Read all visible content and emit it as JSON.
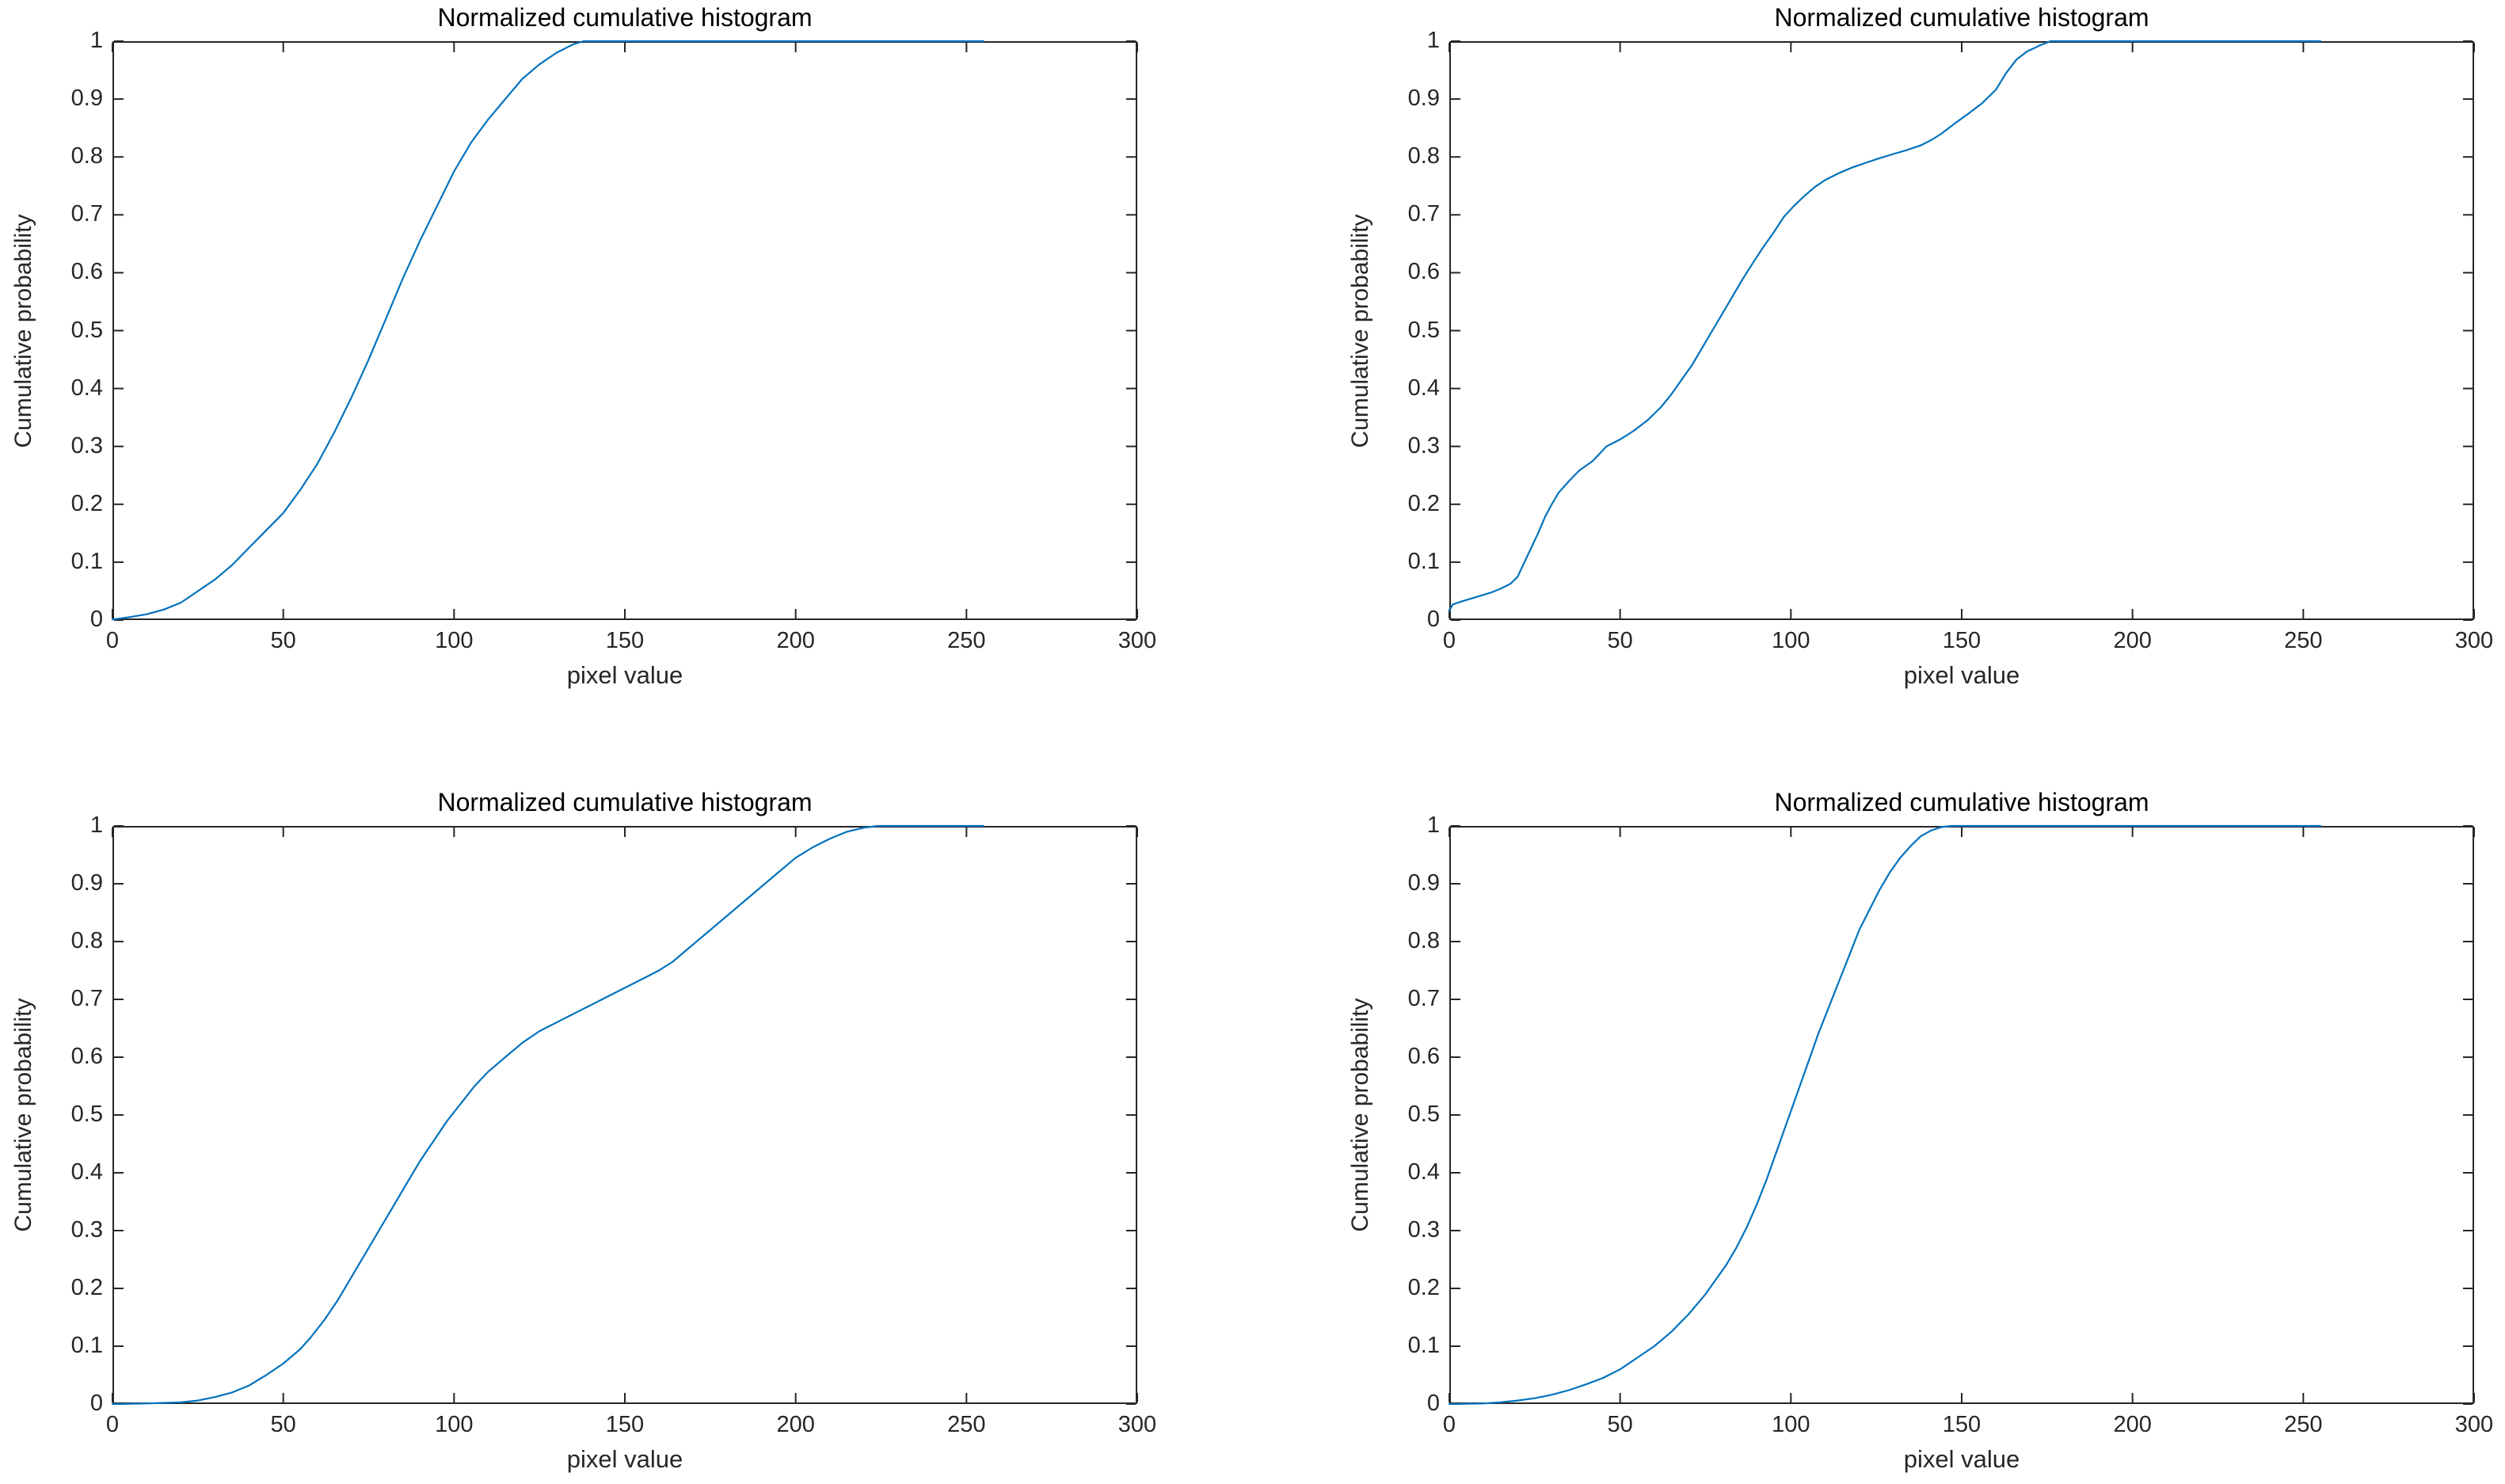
{
  "figure": {
    "background_color": "#ffffff",
    "axis_color": "#262626",
    "title_color": "#000000",
    "line_color": "#0072BD"
  },
  "chart_data": [
    {
      "type": "line",
      "position": "top-left",
      "title": "Normalized cumulative histogram",
      "xlabel": "pixel value",
      "ylabel": "Cumulative probability",
      "xlim": [
        0,
        300
      ],
      "ylim": [
        0,
        1
      ],
      "xticks": [
        0,
        50,
        100,
        150,
        200,
        250,
        300
      ],
      "xtick_labels": [
        "0",
        "50",
        "100",
        "150",
        "200",
        "250",
        "300"
      ],
      "yticks": [
        0,
        0.1,
        0.2,
        0.3,
        0.4,
        0.5,
        0.6,
        0.7,
        0.8,
        0.9,
        1
      ],
      "ytick_labels": [
        "0",
        "0.1",
        "0.2",
        "0.3",
        "0.4",
        "0.5",
        "0.6",
        "0.7",
        "0.8",
        "0.9",
        "1"
      ],
      "grid": false,
      "legend": null,
      "points": [
        [
          0,
          0.001
        ],
        [
          5,
          0.005
        ],
        [
          10,
          0.01
        ],
        [
          15,
          0.018
        ],
        [
          20,
          0.03
        ],
        [
          25,
          0.05
        ],
        [
          30,
          0.07
        ],
        [
          35,
          0.095
        ],
        [
          40,
          0.125
        ],
        [
          45,
          0.155
        ],
        [
          50,
          0.185
        ],
        [
          55,
          0.225
        ],
        [
          60,
          0.27
        ],
        [
          65,
          0.325
        ],
        [
          70,
          0.385
        ],
        [
          75,
          0.45
        ],
        [
          80,
          0.52
        ],
        [
          85,
          0.59
        ],
        [
          90,
          0.655
        ],
        [
          95,
          0.715
        ],
        [
          100,
          0.775
        ],
        [
          105,
          0.825
        ],
        [
          110,
          0.865
        ],
        [
          115,
          0.9
        ],
        [
          120,
          0.935
        ],
        [
          125,
          0.96
        ],
        [
          130,
          0.98
        ],
        [
          135,
          0.995
        ],
        [
          138,
          1
        ],
        [
          255,
          1
        ]
      ]
    },
    {
      "type": "line",
      "position": "top-right",
      "title": "Normalized cumulative histogram",
      "xlabel": "pixel value",
      "ylabel": "Cumulative probability",
      "xlim": [
        0,
        300
      ],
      "ylim": [
        0,
        1
      ],
      "xticks": [
        0,
        50,
        100,
        150,
        200,
        250,
        300
      ],
      "xtick_labels": [
        "0",
        "50",
        "100",
        "150",
        "200",
        "250",
        "300"
      ],
      "yticks": [
        0,
        0.1,
        0.2,
        0.3,
        0.4,
        0.5,
        0.6,
        0.7,
        0.8,
        0.9,
        1
      ],
      "ytick_labels": [
        "0",
        "0.1",
        "0.2",
        "0.3",
        "0.4",
        "0.5",
        "0.6",
        "0.7",
        "0.8",
        "0.9",
        "1"
      ],
      "grid": false,
      "legend": null,
      "points": [
        [
          0,
          0.016
        ],
        [
          1,
          0.027
        ],
        [
          4,
          0.033
        ],
        [
          8,
          0.04
        ],
        [
          12,
          0.047
        ],
        [
          15,
          0.054
        ],
        [
          18,
          0.063
        ],
        [
          20,
          0.075
        ],
        [
          22,
          0.1
        ],
        [
          24,
          0.125
        ],
        [
          26,
          0.15
        ],
        [
          28,
          0.178
        ],
        [
          30,
          0.2
        ],
        [
          32,
          0.22
        ],
        [
          35,
          0.24
        ],
        [
          38,
          0.258
        ],
        [
          42,
          0.275
        ],
        [
          46,
          0.3
        ],
        [
          50,
          0.312
        ],
        [
          54,
          0.327
        ],
        [
          58,
          0.345
        ],
        [
          62,
          0.368
        ],
        [
          65,
          0.39
        ],
        [
          68,
          0.415
        ],
        [
          71,
          0.44
        ],
        [
          74,
          0.47
        ],
        [
          77,
          0.5
        ],
        [
          80,
          0.53
        ],
        [
          83,
          0.56
        ],
        [
          86,
          0.59
        ],
        [
          89,
          0.618
        ],
        [
          92,
          0.645
        ],
        [
          95,
          0.67
        ],
        [
          98,
          0.697
        ],
        [
          101,
          0.716
        ],
        [
          104,
          0.733
        ],
        [
          107,
          0.748
        ],
        [
          110,
          0.76
        ],
        [
          114,
          0.772
        ],
        [
          118,
          0.782
        ],
        [
          122,
          0.79
        ],
        [
          126,
          0.798
        ],
        [
          130,
          0.805
        ],
        [
          134,
          0.812
        ],
        [
          138,
          0.82
        ],
        [
          141,
          0.829
        ],
        [
          144,
          0.84
        ],
        [
          148,
          0.858
        ],
        [
          152,
          0.875
        ],
        [
          156,
          0.893
        ],
        [
          160,
          0.916
        ],
        [
          163,
          0.945
        ],
        [
          166,
          0.968
        ],
        [
          169,
          0.982
        ],
        [
          173,
          0.993
        ],
        [
          176,
          1
        ],
        [
          255,
          1
        ]
      ]
    },
    {
      "type": "line",
      "position": "bottom-left",
      "title": "Normalized cumulative histogram",
      "xlabel": "pixel value",
      "ylabel": "Cumulative probability",
      "xlim": [
        0,
        300
      ],
      "ylim": [
        0,
        1
      ],
      "xticks": [
        0,
        50,
        100,
        150,
        200,
        250,
        300
      ],
      "xtick_labels": [
        "0",
        "50",
        "100",
        "150",
        "200",
        "250",
        "300"
      ],
      "yticks": [
        0,
        0.1,
        0.2,
        0.3,
        0.4,
        0.5,
        0.6,
        0.7,
        0.8,
        0.9,
        1
      ],
      "ytick_labels": [
        "0",
        "0.1",
        "0.2",
        "0.3",
        "0.4",
        "0.5",
        "0.6",
        "0.7",
        "0.8",
        "0.9",
        "1"
      ],
      "grid": false,
      "legend": null,
      "points": [
        [
          0,
          0
        ],
        [
          10,
          0.001
        ],
        [
          20,
          0.003
        ],
        [
          25,
          0.006
        ],
        [
          30,
          0.012
        ],
        [
          35,
          0.02
        ],
        [
          40,
          0.032
        ],
        [
          45,
          0.05
        ],
        [
          50,
          0.07
        ],
        [
          55,
          0.095
        ],
        [
          58,
          0.115
        ],
        [
          62,
          0.145
        ],
        [
          66,
          0.18
        ],
        [
          70,
          0.22
        ],
        [
          74,
          0.26
        ],
        [
          78,
          0.3
        ],
        [
          82,
          0.34
        ],
        [
          86,
          0.38
        ],
        [
          90,
          0.42
        ],
        [
          94,
          0.455
        ],
        [
          98,
          0.49
        ],
        [
          102,
          0.52
        ],
        [
          106,
          0.55
        ],
        [
          110,
          0.575
        ],
        [
          115,
          0.6
        ],
        [
          120,
          0.625
        ],
        [
          125,
          0.645
        ],
        [
          130,
          0.66
        ],
        [
          135,
          0.675
        ],
        [
          140,
          0.69
        ],
        [
          145,
          0.705
        ],
        [
          150,
          0.72
        ],
        [
          155,
          0.735
        ],
        [
          160,
          0.75
        ],
        [
          164,
          0.765
        ],
        [
          168,
          0.785
        ],
        [
          172,
          0.805
        ],
        [
          176,
          0.825
        ],
        [
          180,
          0.845
        ],
        [
          185,
          0.87
        ],
        [
          190,
          0.895
        ],
        [
          195,
          0.92
        ],
        [
          200,
          0.945
        ],
        [
          205,
          0.963
        ],
        [
          210,
          0.978
        ],
        [
          215,
          0.99
        ],
        [
          220,
          0.997
        ],
        [
          224,
          1
        ],
        [
          255,
          1
        ]
      ]
    },
    {
      "type": "line",
      "position": "bottom-right",
      "title": "Normalized cumulative histogram",
      "xlabel": "pixel value",
      "ylabel": "Cumulative probability",
      "xlim": [
        0,
        300
      ],
      "ylim": [
        0,
        1
      ],
      "xticks": [
        0,
        50,
        100,
        150,
        200,
        250,
        300
      ],
      "xtick_labels": [
        "0",
        "50",
        "100",
        "150",
        "200",
        "250",
        "300"
      ],
      "yticks": [
        0,
        0.1,
        0.2,
        0.3,
        0.4,
        0.5,
        0.6,
        0.7,
        0.8,
        0.9,
        1
      ],
      "ytick_labels": [
        "0",
        "0.1",
        "0.2",
        "0.3",
        "0.4",
        "0.5",
        "0.6",
        "0.7",
        "0.8",
        "0.9",
        "1"
      ],
      "grid": false,
      "legend": null,
      "points": [
        [
          0,
          0
        ],
        [
          10,
          0.001
        ],
        [
          15,
          0.003
        ],
        [
          20,
          0.006
        ],
        [
          25,
          0.01
        ],
        [
          30,
          0.016
        ],
        [
          35,
          0.024
        ],
        [
          40,
          0.034
        ],
        [
          45,
          0.045
        ],
        [
          50,
          0.06
        ],
        [
          55,
          0.08
        ],
        [
          60,
          0.1
        ],
        [
          65,
          0.125
        ],
        [
          70,
          0.155
        ],
        [
          75,
          0.19
        ],
        [
          78,
          0.215
        ],
        [
          81,
          0.24
        ],
        [
          84,
          0.27
        ],
        [
          87,
          0.305
        ],
        [
          90,
          0.345
        ],
        [
          93,
          0.39
        ],
        [
          96,
          0.44
        ],
        [
          99,
          0.49
        ],
        [
          102,
          0.54
        ],
        [
          105,
          0.59
        ],
        [
          108,
          0.64
        ],
        [
          111,
          0.685
        ],
        [
          114,
          0.73
        ],
        [
          117,
          0.775
        ],
        [
          120,
          0.82
        ],
        [
          123,
          0.855
        ],
        [
          126,
          0.89
        ],
        [
          129,
          0.92
        ],
        [
          132,
          0.945
        ],
        [
          135,
          0.965
        ],
        [
          138,
          0.982
        ],
        [
          141,
          0.992
        ],
        [
          144,
          0.998
        ],
        [
          147,
          1
        ],
        [
          255,
          1
        ]
      ]
    }
  ]
}
